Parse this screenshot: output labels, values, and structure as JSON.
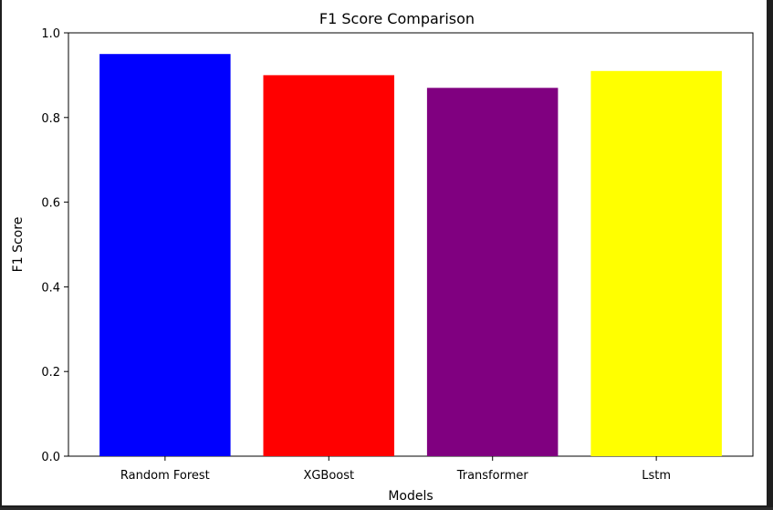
{
  "chart_data": {
    "type": "bar",
    "title": "F1 Score Comparison",
    "xlabel": "Models",
    "ylabel": "F1 Score",
    "categories": [
      "Random Forest",
      "XGBoost",
      "Transformer",
      "Lstm"
    ],
    "values": [
      0.95,
      0.9,
      0.87,
      0.91
    ],
    "colors": [
      "#0000ff",
      "#ff0000",
      "#800080",
      "#ffff00"
    ],
    "ylim": [
      0,
      1.0
    ],
    "yticks": [
      "0.0",
      "0.2",
      "0.4",
      "0.6",
      "0.8",
      "1.0"
    ],
    "grid": false,
    "legend": "none"
  }
}
